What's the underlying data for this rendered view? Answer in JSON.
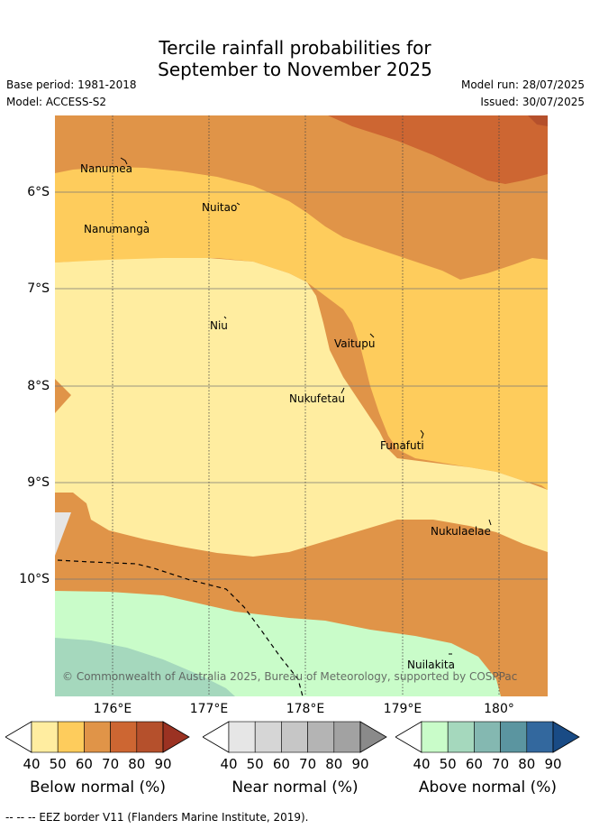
{
  "title_line1": "Tercile rainfall probabilities for",
  "title_line2": "September to November 2025",
  "base_period": "Base period: 1981-2018",
  "model": "Model: ACCESS-S2",
  "model_run": "Model run: 28/07/2025",
  "issued": "Issued: 30/07/2025",
  "latitude_labels": [
    "6°S",
    "7°S",
    "8°S",
    "9°S",
    "10°S"
  ],
  "longitude_labels": [
    "176°E",
    "177°E",
    "178°E",
    "179°E",
    "180°"
  ],
  "places": [
    "Nanumea",
    "Nuitao",
    "Nanumanga",
    "Niu",
    "Vaitupu",
    "Nukufetau",
    "Funafuti",
    "Nukulaelae",
    "Nuilakita"
  ],
  "copyright": "© Commonwealth of Australia 2025, Bureau of Meteorology, supported by COSPPac",
  "colorbars": [
    {
      "label": "Below normal (%)",
      "ticks": [
        "40",
        "50",
        "60",
        "70",
        "80",
        "90"
      ],
      "colors": [
        "#ffffff",
        "#ffeda0",
        "#fecc5c",
        "#e09448",
        "#cd6632",
        "#b5502c",
        "#9b3222"
      ]
    },
    {
      "label": "Near normal (%)",
      "ticks": [
        "40",
        "50",
        "60",
        "70",
        "80",
        "90"
      ],
      "colors": [
        "#ffffff",
        "#e6e6e6",
        "#d6d6d6",
        "#c6c6c6",
        "#b4b4b4",
        "#a2a2a2",
        "#8a8a8a"
      ]
    },
    {
      "label": "Above normal (%)",
      "ticks": [
        "40",
        "50",
        "60",
        "70",
        "80",
        "90"
      ],
      "colors": [
        "#ffffff",
        "#c9fcc9",
        "#a5d8bd",
        "#84b8b1",
        "#5b95a0",
        "#33689e",
        "#194b85"
      ]
    }
  ],
  "footnote": "-- -- -- EEZ border V11 (Flanders Marine Institute, 2019)."
}
